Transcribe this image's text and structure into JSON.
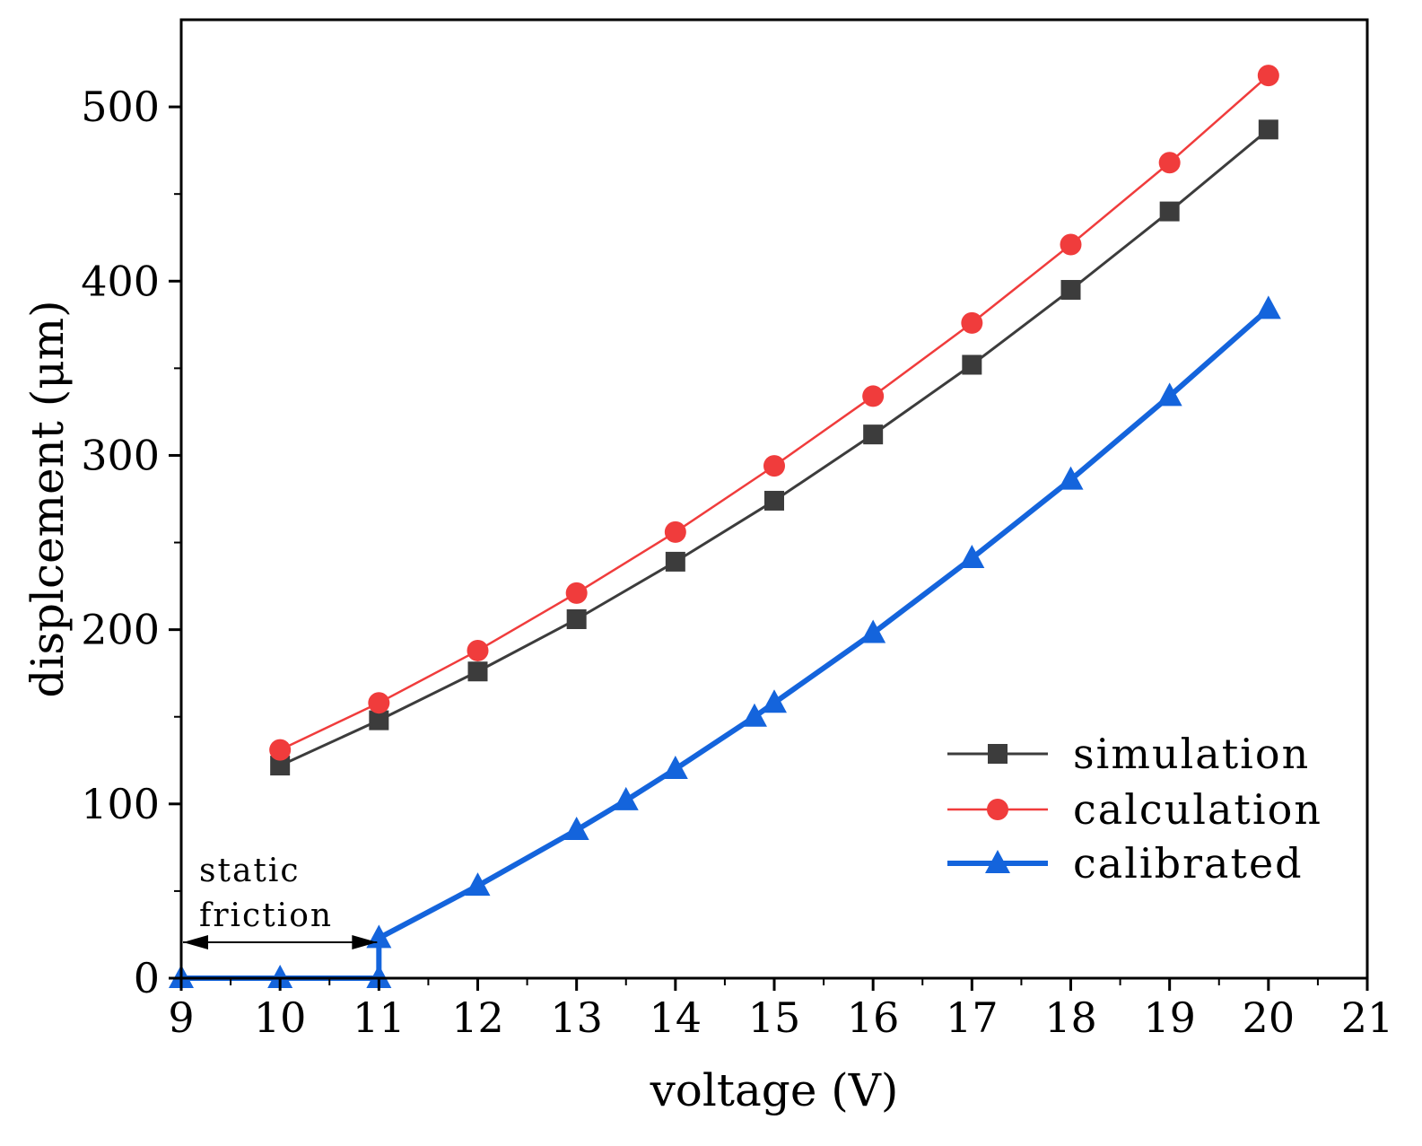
{
  "chart_data": {
    "type": "line",
    "xlabel": "voltage (V)",
    "ylabel": "displcement (μm)",
    "xlim": [
      9,
      21
    ],
    "ylim": [
      0,
      550
    ],
    "x_ticks": [
      9,
      10,
      11,
      12,
      13,
      14,
      15,
      16,
      17,
      18,
      19,
      20,
      21
    ],
    "y_ticks": [
      0,
      100,
      200,
      300,
      400,
      500
    ],
    "grid": false,
    "legend_position": "bottom-right",
    "series": [
      {
        "name": "simulation",
        "color": "#3c3c3c",
        "marker": "square",
        "x": [
          10,
          11,
          12,
          13,
          14,
          15,
          16,
          17,
          18,
          19,
          20
        ],
        "y": [
          122,
          148,
          176,
          206,
          239,
          274,
          312,
          352,
          395,
          440,
          487
        ]
      },
      {
        "name": "calculation",
        "color": "#f03c3c",
        "marker": "circle",
        "x": [
          10,
          11,
          12,
          13,
          14,
          15,
          16,
          17,
          18,
          19,
          20
        ],
        "y": [
          131,
          158,
          188,
          221,
          256,
          294,
          334,
          376,
          421,
          468,
          518
        ]
      },
      {
        "name": "calibrated",
        "color": "#1464dc",
        "marker": "triangle",
        "x": [
          9,
          10,
          11,
          11,
          12,
          13,
          13.5,
          14,
          14.8,
          15,
          16,
          17,
          18,
          19,
          20
        ],
        "y": [
          0,
          0,
          0,
          23,
          53,
          85,
          102,
          120,
          150,
          158,
          198,
          241,
          286,
          334,
          384
        ]
      }
    ],
    "annotation": {
      "line1": "static",
      "line2": "friction",
      "x_start": 9,
      "x_end": 11
    }
  }
}
